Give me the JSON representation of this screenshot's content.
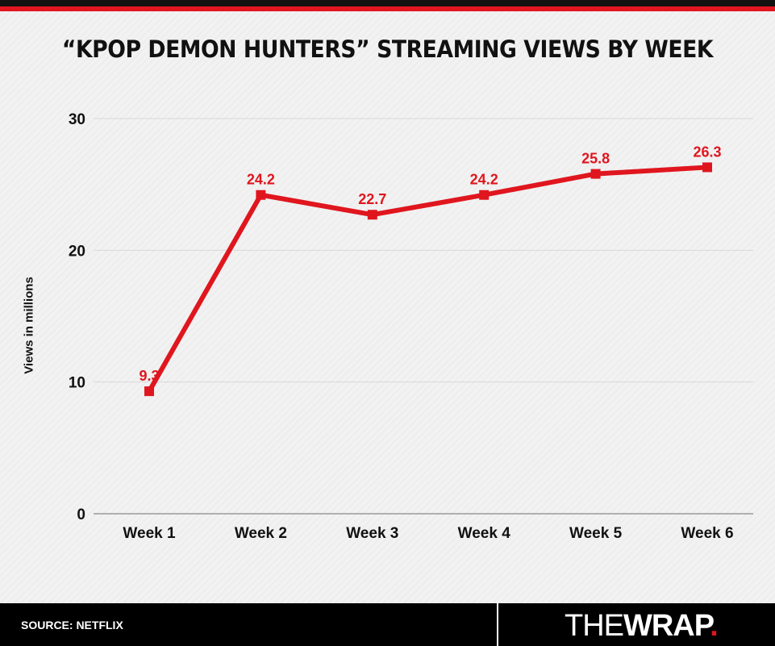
{
  "header": {
    "title": "“KPOP DEMON HUNTERS” STREAMING VIEWS BY WEEK"
  },
  "chart_data": {
    "type": "line",
    "title": "“KPOP DEMON HUNTERS” STREAMING VIEWS BY WEEK",
    "xlabel": "",
    "ylabel": "Views in millions",
    "categories": [
      "Week 1",
      "Week 2",
      "Week 3",
      "Week 4",
      "Week 5",
      "Week 6"
    ],
    "series": [
      {
        "values": [
          9.3,
          24.2,
          22.7,
          24.2,
          25.8,
          26.3
        ],
        "color": "#e0161e"
      }
    ],
    "data_labels": [
      "9.3",
      "24.2",
      "22.7",
      "24.2",
      "25.8",
      "26.3"
    ],
    "ylim": [
      0,
      30
    ],
    "yticks": [
      "0",
      "10",
      "20",
      "30"
    ],
    "grid": true,
    "legend": "none"
  },
  "footer": {
    "source": "SOURCE: NETFLIX",
    "logo_the": "THE",
    "logo_wrap": "WRAP",
    "logo_dot": "."
  },
  "colors": {
    "accent": "#e0161e",
    "text": "#111111",
    "footer_bg": "#000000"
  }
}
